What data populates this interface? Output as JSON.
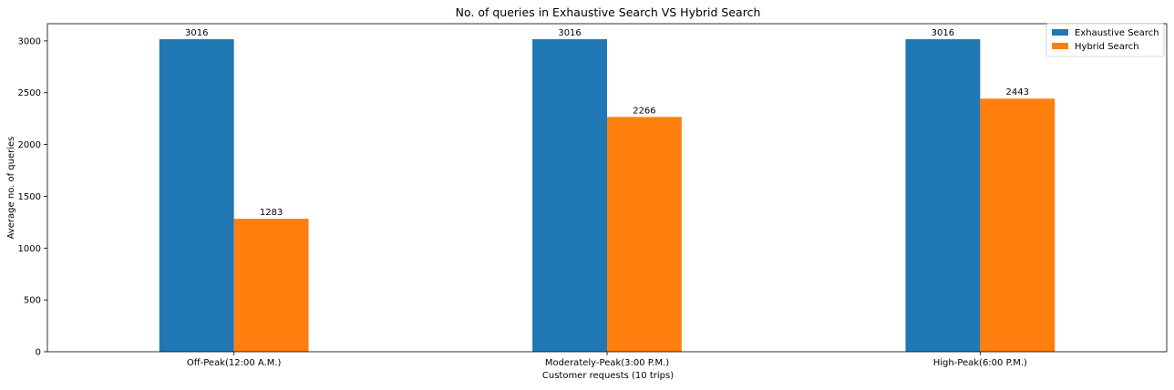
{
  "chart_data": {
    "type": "bar",
    "title": "No. of queries in Exhaustive Search VS Hybrid Search",
    "xlabel": "Customer requests (10 trips)",
    "ylabel": "Average no. of queries",
    "categories": [
      "Off-Peak(12:00 A.M.)",
      "Moderately-Peak(3:00 P.M.)",
      "High-Peak(6:00 P.M.)"
    ],
    "series": [
      {
        "name": "Exhaustive Search",
        "color": "#1f77b4",
        "values": [
          3016,
          3016,
          3016
        ]
      },
      {
        "name": "Hybrid Search",
        "color": "#ff7f0e",
        "values": [
          1283,
          2266,
          2443
        ]
      }
    ],
    "ylim": [
      0,
      3166
    ],
    "yticks": [
      0,
      500,
      1000,
      1500,
      2000,
      2500,
      3000
    ],
    "legend": "top-right",
    "grid": false
  }
}
